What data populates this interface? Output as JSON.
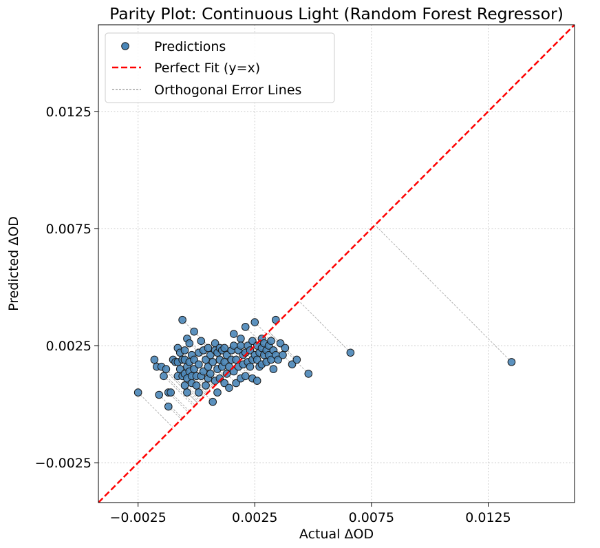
{
  "chart_data": {
    "type": "scatter",
    "title": "Parity Plot: Continuous Light (Random Forest Regressor)",
    "xlabel": "Actual ΔOD",
    "ylabel": "Predicted ΔOD",
    "xlim": [
      -0.0042,
      0.0162
    ],
    "ylim": [
      -0.0042,
      0.0162
    ],
    "xticks": [
      -0.0025,
      0.0025,
      0.0075,
      0.0125
    ],
    "xtick_labels": [
      "−0.0025",
      "0.0025",
      "0.0075",
      "0.0125"
    ],
    "yticks": [
      -0.0025,
      0.0025,
      0.0075,
      0.0125
    ],
    "ytick_labels": [
      "−0.0025",
      "0.0025",
      "0.0075",
      "0.0125"
    ],
    "grid": true,
    "legend_position": "top-left",
    "legend": [
      {
        "label": "Predictions",
        "kind": "marker"
      },
      {
        "label": "Perfect Fit (y=x)",
        "kind": "dashed-red"
      },
      {
        "label": "Orthogonal Error Lines",
        "kind": "thin-dashed-gray"
      }
    ],
    "colors": {
      "points": "#4a86b8",
      "point_edge": "#1a1a1a",
      "fit_line": "#ff0000",
      "error_lines": "#aaaaaa",
      "grid": "#cccccc"
    },
    "series": [
      {
        "name": "Predictions",
        "points": [
          [
            -0.0025,
            0.0005
          ],
          [
            -0.0018,
            0.0019
          ],
          [
            -0.0017,
            0.0016
          ],
          [
            -0.0016,
            0.0004
          ],
          [
            -0.0015,
            0.0016
          ],
          [
            -0.0014,
            0.0012
          ],
          [
            -0.0013,
            0.0015
          ],
          [
            -0.0012,
            -0.0001
          ],
          [
            -0.0012,
            0.0005
          ],
          [
            -0.0011,
            0.0005
          ],
          [
            -0.001,
            0.0019
          ],
          [
            -0.0009,
            0.0018
          ],
          [
            -0.0008,
            0.0012
          ],
          [
            -0.0008,
            0.0024
          ],
          [
            -0.0008,
            0.0018
          ],
          [
            -0.0007,
            0.0022
          ],
          [
            -0.0007,
            0.0015
          ],
          [
            -0.0006,
            0.0036
          ],
          [
            -0.0006,
            0.0019
          ],
          [
            -0.0006,
            0.0012
          ],
          [
            -0.0005,
            0.0023
          ],
          [
            -0.0005,
            0.0019
          ],
          [
            -0.0005,
            0.0013
          ],
          [
            -0.0005,
            0.0008
          ],
          [
            -0.0004,
            0.0028
          ],
          [
            -0.0004,
            0.0016
          ],
          [
            -0.0004,
            0.0011
          ],
          [
            -0.0004,
            0.0005
          ],
          [
            -0.0003,
            0.0026
          ],
          [
            -0.0003,
            0.0018
          ],
          [
            -0.0003,
            0.0014
          ],
          [
            -0.0002,
            0.0021
          ],
          [
            -0.0002,
            0.0012
          ],
          [
            -0.0002,
            0.0009
          ],
          [
            -0.0001,
            0.0031
          ],
          [
            -0.0001,
            0.0019
          ],
          [
            -0.0001,
            0.0015
          ],
          [
            0.0,
            0.0012
          ],
          [
            0.0,
            0.0008
          ],
          [
            0.0001,
            0.0022
          ],
          [
            0.0001,
            0.0017
          ],
          [
            0.0001,
            0.0005
          ],
          [
            0.0002,
            0.0027
          ],
          [
            0.0002,
            0.0012
          ],
          [
            0.0003,
            0.0023
          ],
          [
            0.0003,
            0.0014
          ],
          [
            0.0004,
            0.0008
          ],
          [
            0.0004,
            0.0019
          ],
          [
            0.0005,
            0.0024
          ],
          [
            0.0005,
            0.0016
          ],
          [
            0.0005,
            0.0011
          ],
          [
            0.0006,
            0.0021
          ],
          [
            0.0006,
            0.0013
          ],
          [
            0.0007,
            0.0018
          ],
          [
            0.0007,
            0.0001
          ],
          [
            0.0008,
            0.0026
          ],
          [
            0.0008,
            0.0023
          ],
          [
            0.0008,
            0.001
          ],
          [
            0.0009,
            0.0015
          ],
          [
            0.0009,
            0.0022
          ],
          [
            0.0009,
            0.0005
          ],
          [
            0.001,
            0.0024
          ],
          [
            0.001,
            0.0019
          ],
          [
            0.001,
            0.0011
          ],
          [
            0.0011,
            0.0016
          ],
          [
            0.0011,
            0.0023
          ],
          [
            0.0012,
            0.0009
          ],
          [
            0.0012,
            0.0024
          ],
          [
            0.0012,
            0.0018
          ],
          [
            0.0013,
            0.0013
          ],
          [
            0.0013,
            0.0021
          ],
          [
            0.0014,
            0.0007
          ],
          [
            0.0014,
            0.0016
          ],
          [
            0.0015,
            0.0023
          ],
          [
            0.0015,
            0.0019
          ],
          [
            0.0016,
            0.003
          ],
          [
            0.0016,
            0.0025
          ],
          [
            0.0016,
            0.0014
          ],
          [
            0.0017,
            0.0019
          ],
          [
            0.0017,
            0.0009
          ],
          [
            0.0018,
            0.0023
          ],
          [
            0.0018,
            0.0016
          ],
          [
            0.0019,
            0.0011
          ],
          [
            0.0019,
            0.0028
          ],
          [
            0.0019,
            0.0025
          ],
          [
            0.002,
            0.0021
          ],
          [
            0.002,
            0.0017
          ],
          [
            0.0021,
            0.0022
          ],
          [
            0.0021,
            0.0012
          ],
          [
            0.0021,
            0.0033
          ],
          [
            0.0022,
            0.0025
          ],
          [
            0.0022,
            0.0018
          ],
          [
            0.0023,
            0.0023
          ],
          [
            0.0023,
            0.0016
          ],
          [
            0.0024,
            0.0019
          ],
          [
            0.0024,
            0.0011
          ],
          [
            0.0024,
            0.0027
          ],
          [
            0.0025,
            0.0021
          ],
          [
            0.0025,
            0.0035
          ],
          [
            0.0026,
            0.0025
          ],
          [
            0.0026,
            0.0019
          ],
          [
            0.0026,
            0.001
          ],
          [
            0.0027,
            0.0016
          ],
          [
            0.0027,
            0.0022
          ],
          [
            0.0028,
            0.0028
          ],
          [
            0.0028,
            0.0024
          ],
          [
            0.0028,
            0.0017
          ],
          [
            0.0029,
            0.0021
          ],
          [
            0.0029,
            0.0026
          ],
          [
            0.003,
            0.0023
          ],
          [
            0.003,
            0.0018
          ],
          [
            0.0031,
            0.0025
          ],
          [
            0.0031,
            0.0021
          ],
          [
            0.0032,
            0.0019
          ],
          [
            0.0032,
            0.0027
          ],
          [
            0.0033,
            0.0023
          ],
          [
            0.0033,
            0.0015
          ],
          [
            0.0034,
            0.0036
          ],
          [
            0.0034,
            0.0021
          ],
          [
            0.0035,
            0.0019
          ],
          [
            0.0036,
            0.0026
          ],
          [
            0.0037,
            0.0021
          ],
          [
            0.0038,
            0.0024
          ],
          [
            0.0041,
            0.0017
          ],
          [
            0.0043,
            0.0019
          ],
          [
            0.0048,
            0.0013
          ],
          [
            0.0066,
            0.0022
          ],
          [
            0.0135,
            0.0018
          ]
        ]
      },
      {
        "name": "Perfect Fit (y=x)",
        "points": [
          [
            -0.0042,
            -0.0042
          ],
          [
            0.0162,
            0.0162
          ]
        ]
      }
    ]
  }
}
